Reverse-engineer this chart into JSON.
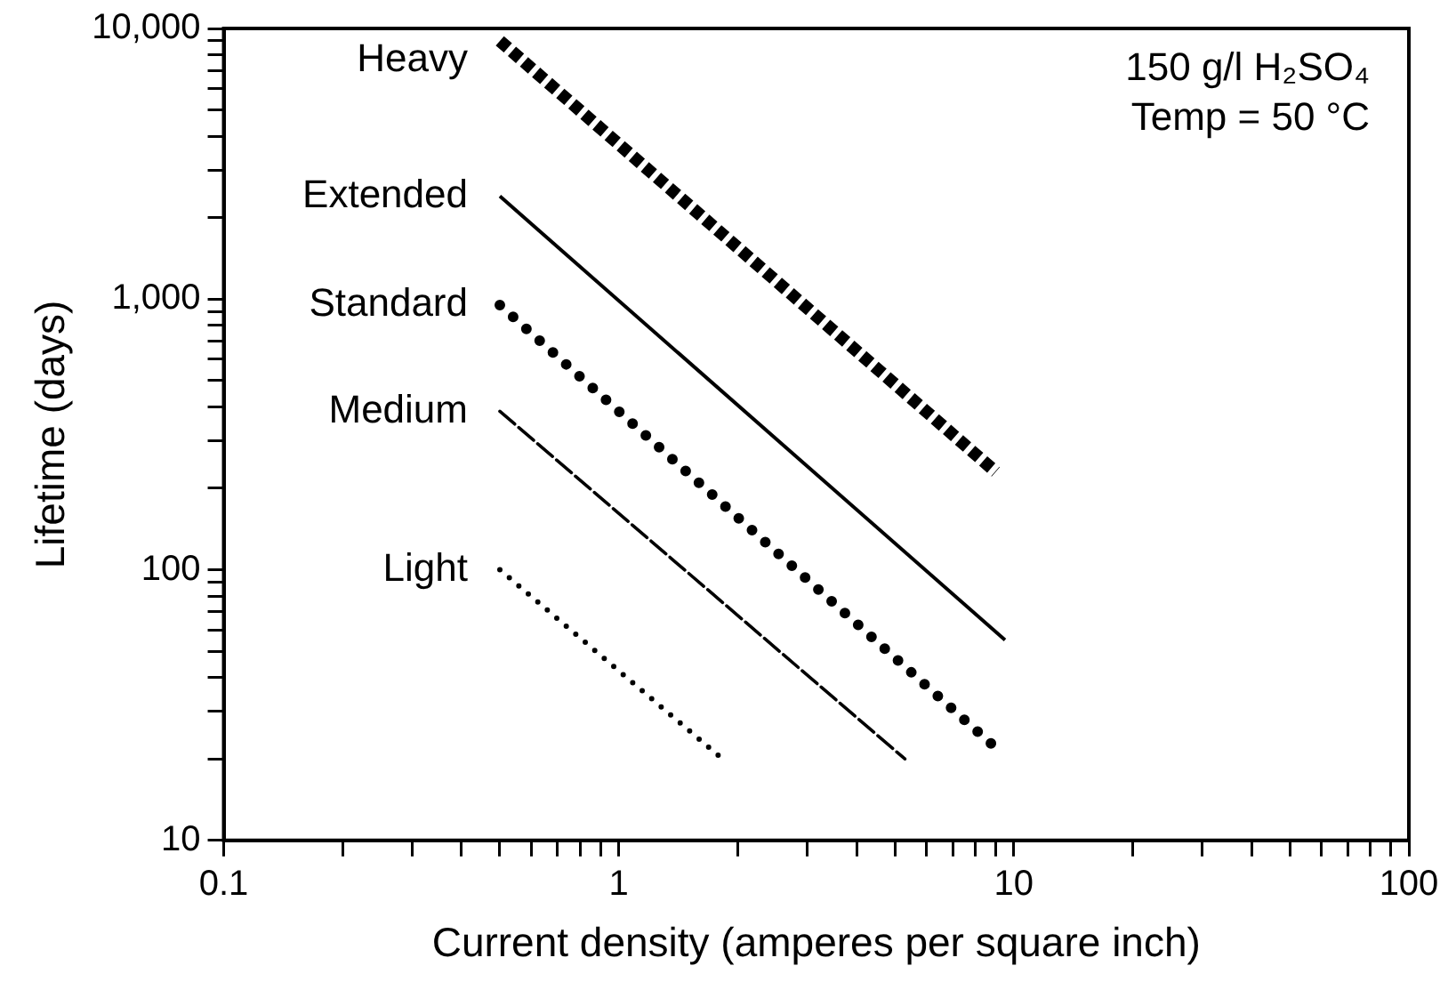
{
  "chart_data": {
    "type": "line",
    "xlabel": "Current density (amperes per square inch)",
    "ylabel": "Lifetime (days)",
    "log": "xy",
    "grid": false,
    "legend": false,
    "marker": "none",
    "xlim": [
      0.1,
      100
    ],
    "ylim": [
      10,
      10000
    ],
    "xticks": [
      0.1,
      {
        "value": 0.2,
        "label": null
      },
      {
        "value": 0.3,
        "label": null
      },
      {
        "value": 0.4,
        "label": null
      },
      {
        "value": 0.5,
        "label": null
      },
      {
        "value": 0.6,
        "label": null
      },
      {
        "value": 0.7,
        "label": null
      },
      {
        "value": 0.8,
        "label": null
      },
      {
        "value": 0.9,
        "label": null
      },
      1,
      {
        "value": 2,
        "label": null
      },
      {
        "value": 3,
        "label": null
      },
      {
        "value": 4,
        "label": null
      },
      {
        "value": 5,
        "label": null
      },
      {
        "value": 6,
        "label": null
      },
      {
        "value": 7,
        "label": null
      },
      {
        "value": 8,
        "label": null
      },
      {
        "value": 9,
        "label": null
      },
      10,
      {
        "value": 20,
        "label": null
      },
      {
        "value": 30,
        "label": null
      },
      {
        "value": 40,
        "label": null
      },
      {
        "value": 50,
        "label": null
      },
      {
        "value": 60,
        "label": null
      },
      {
        "value": 70,
        "label": null
      },
      {
        "value": 80,
        "label": null
      },
      {
        "value": 90,
        "label": null
      },
      100
    ],
    "yticks": [
      10,
      {
        "value": 20,
        "label": null
      },
      {
        "value": 30,
        "label": null
      },
      {
        "value": 40,
        "label": null
      },
      {
        "value": 50,
        "label": null
      },
      {
        "value": 60,
        "label": null
      },
      {
        "value": 70,
        "label": null
      },
      {
        "value": 80,
        "label": null
      },
      {
        "value": 90,
        "label": null
      },
      100,
      {
        "value": 200,
        "label": null
      },
      {
        "value": 300,
        "label": null
      },
      {
        "value": 400,
        "label": null
      },
      {
        "value": 500,
        "label": null
      },
      {
        "value": 600,
        "label": null
      },
      {
        "value": 700,
        "label": null
      },
      {
        "value": 800,
        "label": null
      },
      {
        "value": 900,
        "label": null
      },
      {
        "value": 1000,
        "label": "1,000"
      },
      {
        "value": 2000,
        "label": null
      },
      {
        "value": 3000,
        "label": null
      },
      {
        "value": 4000,
        "label": null
      },
      {
        "value": 5000,
        "label": null
      },
      {
        "value": 6000,
        "label": null
      },
      {
        "value": 7000,
        "label": null
      },
      {
        "value": 8000,
        "label": null
      },
      {
        "value": 9000,
        "label": null
      },
      {
        "value": 10000,
        "label": "10,000"
      }
    ],
    "series": [
      {
        "name": "Heavy",
        "color": "#000000",
        "line_style": "dashed",
        "x": [
          0.5,
          9
        ],
        "values": [
          9000,
          230
        ]
      },
      {
        "name": "Extended",
        "color": "#000000",
        "line_style": "solid",
        "x": [
          0.5,
          9.5
        ],
        "values": [
          2400,
          55
        ]
      },
      {
        "name": "Standard",
        "color": "#000000",
        "line_style": "dotted",
        "x": [
          0.5,
          9
        ],
        "values": [
          950,
          22
        ]
      },
      {
        "name": "Medium",
        "color": "#000000",
        "line_style": "dashed",
        "x": [
          0.5,
          5.3
        ],
        "values": [
          385,
          20
        ]
      },
      {
        "name": "Light",
        "color": "#000000",
        "line_style": "dotted",
        "x": [
          0.5,
          1.83
        ],
        "values": [
          100,
          20
        ]
      }
    ],
    "annotations": [
      "150 g/l H₂SO₄",
      "Temp = 50 °C"
    ]
  }
}
